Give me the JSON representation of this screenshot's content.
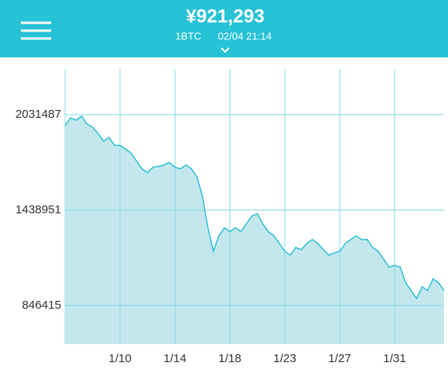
{
  "header": {
    "price": "¥921,293",
    "unit": "1BTC",
    "timestamp": "02/04 21:14"
  },
  "chart_data": {
    "type": "area",
    "color": "#2bbfd2",
    "fill": "#c4e7ee",
    "grid": true,
    "ylim": [
      607000,
      2314000
    ],
    "yticks": [
      846415,
      1438951,
      2031487
    ],
    "categories": [
      null,
      null,
      null,
      null,
      null,
      null,
      null,
      null,
      null,
      null,
      "1/10",
      null,
      null,
      null,
      null,
      null,
      null,
      null,
      null,
      null,
      "1/14",
      null,
      null,
      null,
      null,
      null,
      null,
      null,
      null,
      null,
      "1/18",
      null,
      null,
      null,
      null,
      null,
      null,
      null,
      null,
      null,
      "1/23",
      null,
      null,
      null,
      null,
      null,
      null,
      null,
      null,
      null,
      "1/27",
      null,
      null,
      null,
      null,
      null,
      null,
      null,
      null,
      null,
      "1/31",
      null,
      null,
      null,
      null,
      null,
      null,
      null,
      null,
      null
    ],
    "values": [
      1963000,
      2012000,
      1997000,
      2022000,
      1973000,
      1953000,
      1914000,
      1866000,
      1890000,
      1841000,
      1841000,
      1817000,
      1793000,
      1744000,
      1695000,
      1671000,
      1705000,
      1710000,
      1719000,
      1734000,
      1705000,
      1695000,
      1719000,
      1695000,
      1646000,
      1524000,
      1329000,
      1183000,
      1280000,
      1329000,
      1305000,
      1329000,
      1305000,
      1354000,
      1402000,
      1417000,
      1354000,
      1305000,
      1280000,
      1232000,
      1183000,
      1159000,
      1207000,
      1193000,
      1232000,
      1256000,
      1232000,
      1193000,
      1159000,
      1173000,
      1183000,
      1232000,
      1256000,
      1280000,
      1256000,
      1256000,
      1207000,
      1183000,
      1134000,
      1085000,
      1095000,
      1085000,
      988000,
      939000,
      890000,
      963000,
      939000,
      1012000,
      988000,
      939000
    ]
  }
}
